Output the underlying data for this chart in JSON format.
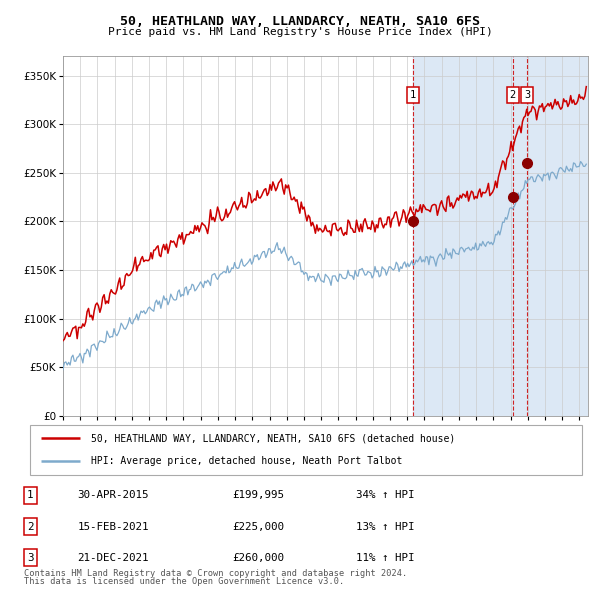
{
  "title": "50, HEATHLAND WAY, LLANDARCY, NEATH, SA10 6FS",
  "subtitle": "Price paid vs. HM Land Registry's House Price Index (HPI)",
  "red_color": "#cc0000",
  "blue_color": "#7eaacc",
  "bg_shade": "#dce8f5",
  "grid_color": "#cccccc",
  "sale_dates": [
    2015.33,
    2021.12,
    2021.97
  ],
  "sale_prices": [
    199995,
    225000,
    260000
  ],
  "sale_labels": [
    "1",
    "2",
    "3"
  ],
  "sale_info": [
    [
      "1",
      "30-APR-2015",
      "£199,995",
      "34% ↑ HPI"
    ],
    [
      "2",
      "15-FEB-2021",
      "£225,000",
      "13% ↑ HPI"
    ],
    [
      "3",
      "21-DEC-2021",
      "£260,000",
      "11% ↑ HPI"
    ]
  ],
  "legend_line1": "50, HEATHLAND WAY, LLANDARCY, NEATH, SA10 6FS (detached house)",
  "legend_line2": "HPI: Average price, detached house, Neath Port Talbot",
  "footer1": "Contains HM Land Registry data © Crown copyright and database right 2024.",
  "footer2": "This data is licensed under the Open Government Licence v3.0.",
  "ylim": [
    0,
    370000
  ],
  "xlim": [
    1995.0,
    2025.5
  ]
}
